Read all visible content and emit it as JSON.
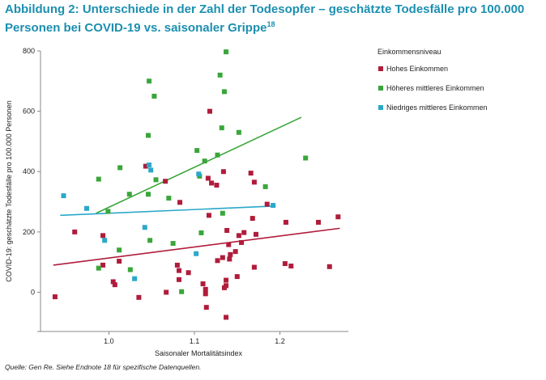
{
  "title": {
    "text": "Abbildung 2: Unterschiede in der Zahl der Todesopfer – geschätzte Todesfälle pro 100.000 Personen bei COVID-19 vs. saisonaler Grippe",
    "footnote": "18"
  },
  "source": "Quelle: Gen Re. Siehe Endnote 18 für spezifische Datenquellen.",
  "colors": {
    "high": "#b01c3b",
    "upper_middle": "#3aa63a",
    "lower_middle": "#2ba8c9"
  },
  "chart_data": {
    "type": "scatter",
    "xlabel": "Saisonaler Mortalitätsindex",
    "ylabel": "COVID-19: geschätzte Todesfälle pro 100.000 Personen",
    "xlim": [
      0.92,
      1.28
    ],
    "ylim": [
      -130,
      800
    ],
    "xticks": [
      1.0,
      1.1,
      1.2
    ],
    "xtick_labels": [
      "1.0",
      "1.1",
      "1.2"
    ],
    "yticks": [
      0,
      200,
      400,
      600,
      800
    ],
    "ytick_labels": [
      "0",
      "200",
      "400",
      "600",
      "800"
    ],
    "grid": false,
    "legend": {
      "title": "Einkommensniveau",
      "position": "right",
      "entries": [
        "Hohes Einkommen",
        "Höheres mittleres Einkommen",
        "Niedriges mittleres Einkommen"
      ]
    },
    "series": [
      {
        "name": "Hohes Einkommen",
        "color": "#b01c3b",
        "points": [
          [
            0.937,
            -15
          ],
          [
            0.96,
            200
          ],
          [
            0.993,
            188
          ],
          [
            0.993,
            90
          ],
          [
            1.005,
            35
          ],
          [
            1.007,
            25
          ],
          [
            1.012,
            103
          ],
          [
            1.035,
            -17
          ],
          [
            1.043,
            418
          ],
          [
            1.066,
            368
          ],
          [
            1.067,
            0
          ],
          [
            1.08,
            90
          ],
          [
            1.082,
            72
          ],
          [
            1.082,
            42
          ],
          [
            1.083,
            298
          ],
          [
            1.093,
            65
          ],
          [
            1.11,
            28
          ],
          [
            1.113,
            10
          ],
          [
            1.113,
            -5
          ],
          [
            1.114,
            -50
          ],
          [
            1.116,
            378
          ],
          [
            1.117,
            255
          ],
          [
            1.118,
            600
          ],
          [
            1.12,
            362
          ],
          [
            1.126,
            355
          ],
          [
            1.127,
            105
          ],
          [
            1.133,
            115
          ],
          [
            1.134,
            400
          ],
          [
            1.135,
            15
          ],
          [
            1.137,
            40
          ],
          [
            1.137,
            22
          ],
          [
            1.137,
            -83
          ],
          [
            1.138,
            205
          ],
          [
            1.14,
            158
          ],
          [
            1.141,
            110
          ],
          [
            1.142,
            125
          ],
          [
            1.148,
            135
          ],
          [
            1.15,
            52
          ],
          [
            1.152,
            188
          ],
          [
            1.155,
            165
          ],
          [
            1.158,
            198
          ],
          [
            1.166,
            395
          ],
          [
            1.168,
            245
          ],
          [
            1.17,
            83
          ],
          [
            1.17,
            365
          ],
          [
            1.172,
            192
          ],
          [
            1.185,
            292
          ],
          [
            1.206,
            95
          ],
          [
            1.207,
            232
          ],
          [
            1.213,
            87
          ],
          [
            1.245,
            232
          ],
          [
            1.258,
            85
          ],
          [
            1.268,
            250
          ]
        ]
      },
      {
        "name": "Höheres mittleres Einkommen",
        "color": "#3aa63a",
        "points": [
          [
            0.988,
            375
          ],
          [
            0.988,
            80
          ],
          [
            0.999,
            268
          ],
          [
            1.012,
            140
          ],
          [
            1.013,
            413
          ],
          [
            1.024,
            325
          ],
          [
            1.025,
            75
          ],
          [
            1.046,
            520
          ],
          [
            1.046,
            325
          ],
          [
            1.047,
            700
          ],
          [
            1.048,
            172
          ],
          [
            1.053,
            650
          ],
          [
            1.055,
            373
          ],
          [
            1.07,
            312
          ],
          [
            1.075,
            162
          ],
          [
            1.085,
            2
          ],
          [
            1.103,
            470
          ],
          [
            1.106,
            385
          ],
          [
            1.108,
            197
          ],
          [
            1.112,
            435
          ],
          [
            1.127,
            455
          ],
          [
            1.13,
            720
          ],
          [
            1.132,
            545
          ],
          [
            1.133,
            262
          ],
          [
            1.135,
            665
          ],
          [
            1.137,
            797
          ],
          [
            1.152,
            530
          ],
          [
            1.183,
            350
          ],
          [
            1.23,
            445
          ]
        ]
      },
      {
        "name": "Niedriges mittleres Einkommen",
        "color": "#2ba8c9",
        "points": [
          [
            0.947,
            320
          ],
          [
            0.974,
            278
          ],
          [
            0.995,
            172
          ],
          [
            1.03,
            45
          ],
          [
            1.042,
            215
          ],
          [
            1.047,
            422
          ],
          [
            1.049,
            405
          ],
          [
            1.102,
            128
          ],
          [
            1.105,
            392
          ],
          [
            1.192,
            288
          ]
        ]
      }
    ],
    "trend_lines": [
      {
        "name": "Hohes Einkommen",
        "x": [
          0.935,
          1.27
        ],
        "y": [
          90,
          212
        ]
      },
      {
        "name": "Höheres mittleres Einkommen",
        "x": [
          0.985,
          1.225
        ],
        "y": [
          262,
          580
        ]
      },
      {
        "name": "Niedriges mittleres Einkommen",
        "x": [
          0.943,
          1.195
        ],
        "y": [
          255,
          286
        ]
      }
    ]
  }
}
